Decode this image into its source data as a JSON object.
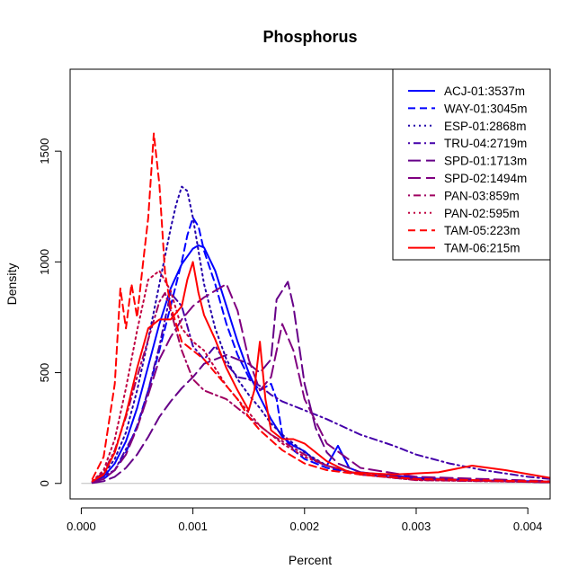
{
  "chart_data": {
    "type": "line",
    "title": "Phosphorus",
    "xlabel": "Percent",
    "ylabel": "Density",
    "xlim": [
      -0.0001,
      0.0042
    ],
    "ylim": [
      -70,
      1870
    ],
    "xticks": [
      "0.000",
      "0.001",
      "0.002",
      "0.003",
      "0.004"
    ],
    "yticks": [
      "0",
      "500",
      "1000",
      "1500"
    ],
    "legend_position": "top-right",
    "series": [
      {
        "name": "ACJ-01:3537m",
        "color": "#0000ff",
        "dash": "solid",
        "x": [
          0.0001,
          0.0002,
          0.0003,
          0.0004,
          0.0005,
          0.0006,
          0.0007,
          0.0008,
          0.0009,
          0.001,
          0.00105,
          0.0011,
          0.0012,
          0.0013,
          0.0014,
          0.0015,
          0.0016,
          0.0017,
          0.0018,
          0.0019,
          0.002,
          0.0021,
          0.0022,
          0.0023,
          0.0024,
          0.0025,
          0.003,
          0.0035,
          0.0042
        ],
        "y": [
          5,
          30,
          90,
          190,
          340,
          530,
          720,
          880,
          990,
          1060,
          1075,
          1065,
          960,
          800,
          640,
          500,
          390,
          290,
          210,
          170,
          145,
          100,
          80,
          170,
          70,
          50,
          25,
          15,
          8
        ]
      },
      {
        "name": "WAY-01:3045m",
        "color": "#0000ff",
        "dash": "dashed",
        "x": [
          0.0001,
          0.0002,
          0.0003,
          0.0004,
          0.0005,
          0.0006,
          0.0007,
          0.0008,
          0.0009,
          0.00095,
          0.001,
          0.00105,
          0.0011,
          0.0012,
          0.0013,
          0.0014,
          0.0015,
          0.0016,
          0.0017,
          0.00175,
          0.0018,
          0.0019,
          0.002,
          0.0022,
          0.0025,
          0.003,
          0.0042
        ],
        "y": [
          5,
          20,
          60,
          140,
          260,
          420,
          600,
          800,
          1000,
          1120,
          1200,
          1160,
          1050,
          900,
          720,
          580,
          480,
          420,
          450,
          380,
          220,
          150,
          110,
          70,
          40,
          20,
          5
        ]
      },
      {
        "name": "ESP-01:2868m",
        "color": "#2200aa",
        "dash": "dotted",
        "x": [
          0.0001,
          0.0002,
          0.0003,
          0.0004,
          0.0005,
          0.0006,
          0.0007,
          0.0008,
          0.00085,
          0.0009,
          0.00095,
          0.001,
          0.0011,
          0.0012,
          0.0013,
          0.0014,
          0.0015,
          0.0016,
          0.0017,
          0.0018,
          0.002,
          0.0022,
          0.0025,
          0.003,
          0.0042
        ],
        "y": [
          10,
          40,
          110,
          230,
          420,
          650,
          900,
          1150,
          1260,
          1340,
          1320,
          1200,
          900,
          700,
          560,
          470,
          400,
          340,
          270,
          220,
          140,
          80,
          40,
          20,
          5
        ]
      },
      {
        "name": "TRU-04:2719m",
        "color": "#4400aa",
        "dash": "dashdot",
        "x": [
          0.0001,
          0.0003,
          0.0005,
          0.0006,
          0.0007,
          0.0008,
          0.0009,
          0.001,
          0.0011,
          0.0012,
          0.0013,
          0.0014,
          0.0015,
          0.0016,
          0.0017,
          0.0018,
          0.002,
          0.0022,
          0.0025,
          0.0028,
          0.003,
          0.0033,
          0.0036,
          0.004,
          0.0042
        ],
        "y": [
          5,
          60,
          250,
          420,
          620,
          860,
          800,
          620,
          560,
          620,
          540,
          480,
          470,
          440,
          400,
          370,
          330,
          290,
          220,
          170,
          130,
          90,
          60,
          30,
          20
        ]
      },
      {
        "name": "SPD-01:1713m",
        "color": "#660088",
        "dash": "longdash",
        "x": [
          0.0001,
          0.0002,
          0.0003,
          0.0004,
          0.0005,
          0.0006,
          0.0007,
          0.0008,
          0.0009,
          0.001,
          0.0011,
          0.0012,
          0.0013,
          0.0014,
          0.0015,
          0.0016,
          0.0017,
          0.00175,
          0.0018,
          0.00185,
          0.0019,
          0.002,
          0.0021,
          0.0022,
          0.0023,
          0.0025,
          0.003,
          0.0042
        ],
        "y": [
          2,
          10,
          30,
          70,
          130,
          210,
          300,
          370,
          430,
          480,
          540,
          560,
          580,
          560,
          540,
          500,
          560,
          830,
          870,
          910,
          800,
          450,
          250,
          140,
          90,
          50,
          20,
          5
        ]
      },
      {
        "name": "SPD-02:1494m",
        "color": "#800080",
        "dash": "longdash",
        "x": [
          0.0001,
          0.0002,
          0.0003,
          0.0004,
          0.0005,
          0.0006,
          0.0007,
          0.0008,
          0.0009,
          0.001,
          0.0011,
          0.0012,
          0.0013,
          0.0014,
          0.0015,
          0.0016,
          0.0017,
          0.0018,
          0.0019,
          0.002,
          0.0022,
          0.0025,
          0.003,
          0.0042
        ],
        "y": [
          5,
          20,
          60,
          130,
          250,
          400,
          560,
          660,
          740,
          800,
          840,
          870,
          900,
          780,
          560,
          420,
          480,
          720,
          600,
          380,
          180,
          70,
          30,
          10
        ]
      },
      {
        "name": "PAN-03:859m",
        "color": "#a00060",
        "dash": "dashdot",
        "x": [
          0.0001,
          0.0002,
          0.0003,
          0.0004,
          0.0005,
          0.0006,
          0.0007,
          0.00075,
          0.0008,
          0.0009,
          0.001,
          0.0011,
          0.0012,
          0.0013,
          0.0014,
          0.0015,
          0.0016,
          0.0017,
          0.0018,
          0.002,
          0.0022,
          0.0025,
          0.003,
          0.0042
        ],
        "y": [
          10,
          50,
          150,
          300,
          480,
          650,
          820,
          860,
          780,
          600,
          470,
          420,
          400,
          380,
          340,
          300,
          260,
          220,
          190,
          130,
          80,
          40,
          15,
          5
        ]
      },
      {
        "name": "PAN-02:595m",
        "color": "#c00040",
        "dash": "dotted",
        "x": [
          0.0001,
          0.0002,
          0.0003,
          0.0004,
          0.0005,
          0.0006,
          0.0007,
          0.0008,
          0.0009,
          0.001,
          0.0011,
          0.0012,
          0.0013,
          0.0014,
          0.0015,
          0.0016,
          0.0018,
          0.002,
          0.0022,
          0.0025,
          0.003,
          0.0042
        ],
        "y": [
          10,
          60,
          200,
          430,
          690,
          920,
          960,
          870,
          700,
          640,
          600,
          520,
          440,
          380,
          320,
          260,
          180,
          120,
          80,
          40,
          15,
          5
        ]
      },
      {
        "name": "TAM-05:223m",
        "color": "#ff0000",
        "dash": "dashed",
        "x": [
          0.0001,
          0.0002,
          0.0003,
          0.00035,
          0.0004,
          0.00045,
          0.0005,
          0.00055,
          0.0006,
          0.00065,
          0.0007,
          0.00075,
          0.0008,
          0.0009,
          0.001,
          0.0011,
          0.0012,
          0.0013,
          0.0014,
          0.0015,
          0.0016,
          0.0018,
          0.002,
          0.0022,
          0.0025,
          0.003,
          0.0042
        ],
        "y": [
          20,
          120,
          450,
          880,
          700,
          900,
          750,
          980,
          1200,
          1580,
          1350,
          950,
          800,
          640,
          600,
          560,
          500,
          440,
          380,
          300,
          240,
          150,
          90,
          60,
          40,
          20,
          8
        ]
      },
      {
        "name": "TAM-06:215m",
        "color": "#ff0000",
        "dash": "solid",
        "x": [
          0.0001,
          0.0002,
          0.0003,
          0.0004,
          0.0005,
          0.0006,
          0.0007,
          0.0008,
          0.0009,
          0.00095,
          0.001,
          0.00105,
          0.0011,
          0.0012,
          0.0013,
          0.0014,
          0.0015,
          0.00155,
          0.0016,
          0.00165,
          0.0017,
          0.0018,
          0.0019,
          0.002,
          0.0022,
          0.0024,
          0.0028,
          0.0032,
          0.0035,
          0.0038,
          0.0042
        ],
        "y": [
          10,
          40,
          140,
          310,
          520,
          700,
          740,
          740,
          800,
          920,
          1000,
          860,
          760,
          650,
          520,
          420,
          330,
          420,
          640,
          380,
          240,
          200,
          200,
          180,
          100,
          50,
          40,
          50,
          80,
          60,
          25
        ]
      }
    ]
  }
}
